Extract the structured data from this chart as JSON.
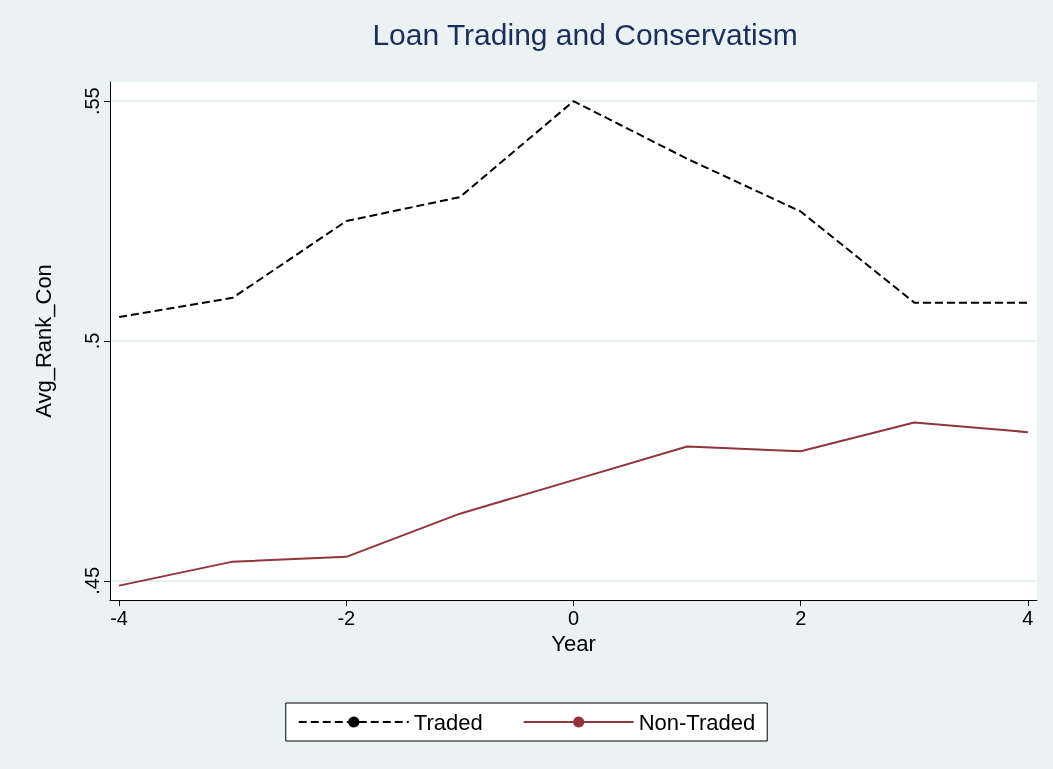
{
  "chart_data": {
    "type": "line",
    "title": "Loan Trading and Conservatism",
    "xlabel": "Year",
    "ylabel": "Avg_Rank_Con",
    "x": [
      -4,
      -3,
      -2,
      -1,
      0,
      1,
      2,
      3,
      4
    ],
    "series": [
      {
        "name": "Traded",
        "color": "#000000",
        "line_style": "dashed",
        "values": [
          0.505,
          0.509,
          0.525,
          0.53,
          0.55,
          0.538,
          0.527,
          0.508,
          0.508
        ]
      },
      {
        "name": "Non-Traded",
        "color": "#90353b",
        "line_style": "solid",
        "values": [
          0.449,
          0.454,
          0.455,
          0.464,
          0.471,
          0.478,
          0.477,
          0.483,
          0.481
        ]
      }
    ],
    "xlim": [
      -4.08,
      4.08
    ],
    "xticks": [
      -4,
      -2,
      0,
      2,
      4
    ],
    "ylim": [
      0.446,
      0.554
    ],
    "yticks": [
      {
        "value": 0.45,
        "label": ".45"
      },
      {
        "value": 0.5,
        "label": ".5"
      },
      {
        "value": 0.55,
        "label": ".55"
      }
    ],
    "grid": "y",
    "legend": "bottom",
    "marker": "none"
  }
}
